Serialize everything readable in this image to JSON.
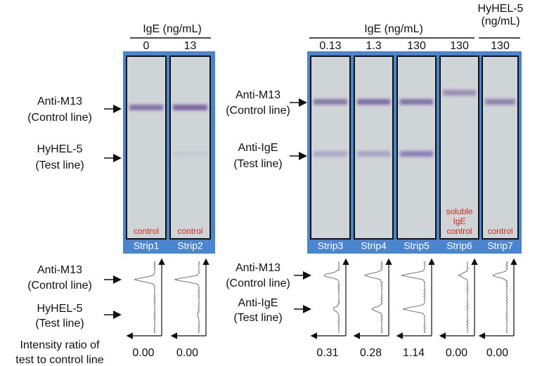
{
  "left_panel": {
    "header": "IgE (ng/mL)",
    "row_labels": [
      {
        "name": "Anti-M13",
        "sub": "(Control line)"
      },
      {
        "name": "HyHEL-5",
        "sub": "(Test line)"
      }
    ]
  },
  "right_panel": {
    "header": "IgE (ng/mL)",
    "extra_header": [
      "HyHEL-5",
      "(ng/mL)"
    ],
    "row_labels": [
      {
        "name": "Anti-M13",
        "sub": "(Control line)"
      },
      {
        "name": "Anti-IgE",
        "sub": "(Test line)"
      }
    ]
  },
  "strips": [
    {
      "label": "Strip1",
      "concentration": "0",
      "note": [
        "control"
      ],
      "ratio": "0.00"
    },
    {
      "label": "Strip2",
      "concentration": "13",
      "note": [
        "control"
      ],
      "ratio": "0.00"
    },
    {
      "label": "Strip3",
      "concentration": "0.13",
      "ratio": "0.31"
    },
    {
      "label": "Strip4",
      "concentration": "1.3",
      "ratio": "0.28"
    },
    {
      "label": "Strip5",
      "concentration": "130",
      "ratio": "1.14"
    },
    {
      "label": "Strip6",
      "concentration": "130",
      "note": [
        "soluble",
        "IgE",
        "control"
      ],
      "ratio": "0.00"
    },
    {
      "label": "Strip7",
      "concentration": "130",
      "note": [
        "control"
      ],
      "ratio": "0.00"
    }
  ],
  "footer": [
    "Intensity ratio of",
    "test to control line"
  ]
}
